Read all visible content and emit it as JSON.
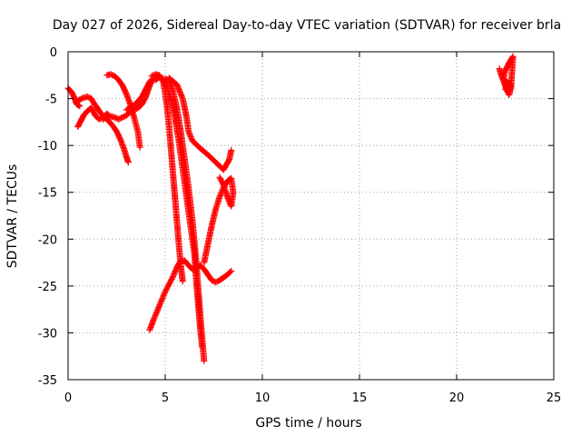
{
  "chart_data": {
    "type": "scatter",
    "title": "Day 027 of 2026, Sidereal Day-to-day VTEC variation (SDTVAR) for receiver brla",
    "xlabel": "GPS time / hours",
    "ylabel": "SDTVAR / TECUs",
    "xlim": [
      0,
      25
    ],
    "ylim": [
      -35,
      0
    ],
    "xticks": [
      0,
      5,
      10,
      15,
      20,
      25
    ],
    "yticks": [
      -35,
      -30,
      -25,
      -20,
      -15,
      -10,
      -5,
      0
    ],
    "grid": true,
    "legend": "none",
    "marker": "+",
    "color": "#ff0000",
    "series": [
      {
        "x": [
          0.0,
          0.15,
          0.3,
          0.45,
          0.6
        ],
        "y": [
          -3.9,
          -4.2,
          -4.8,
          -5.6,
          -5.8
        ]
      },
      {
        "x": [
          0.5,
          0.65,
          0.8,
          1.0,
          1.2,
          1.4,
          1.6,
          1.8,
          2.0,
          2.1
        ],
        "y": [
          -8.0,
          -7.4,
          -6.8,
          -6.3,
          -6.0,
          -6.8,
          -7.2,
          -7.0,
          -6.6,
          -6.8
        ]
      },
      {
        "x": [
          0.4,
          0.6,
          0.8,
          1.0,
          1.2,
          1.3,
          1.5,
          1.7,
          1.9,
          2.1,
          2.3,
          2.5,
          2.7,
          2.9,
          3.0,
          3.1
        ],
        "y": [
          -5.4,
          -5.1,
          -4.9,
          -4.8,
          -5.0,
          -5.4,
          -6.0,
          -6.6,
          -7.0,
          -7.4,
          -7.9,
          -8.5,
          -9.4,
          -10.5,
          -11.2,
          -11.8
        ]
      },
      {
        "x": [
          2.0,
          2.2,
          2.4,
          2.6,
          2.8,
          3.0,
          3.2,
          3.4,
          3.6,
          3.7
        ],
        "y": [
          -2.5,
          -2.4,
          -2.6,
          -3.0,
          -3.6,
          -4.5,
          -5.6,
          -7.0,
          -8.6,
          -10.2
        ]
      },
      {
        "x": [
          1.8,
          2.0,
          2.2,
          2.4,
          2.6,
          2.8,
          3.0,
          3.2,
          3.4,
          3.6,
          3.8,
          4.0,
          4.2,
          4.4,
          4.6
        ],
        "y": [
          -7.2,
          -7.0,
          -6.9,
          -7.0,
          -7.2,
          -7.0,
          -6.8,
          -6.4,
          -6.2,
          -6.0,
          -5.6,
          -4.8,
          -3.6,
          -2.8,
          -2.6
        ]
      },
      {
        "x": [
          3.0,
          3.2,
          3.4,
          3.6,
          3.8,
          4.0,
          4.2,
          4.4,
          4.6
        ],
        "y": [
          -6.2,
          -6.0,
          -5.7,
          -5.3,
          -4.8,
          -4.0,
          -3.2,
          -2.8,
          -2.6
        ]
      },
      {
        "x": [
          4.3,
          4.5,
          4.7,
          4.9,
          5.0,
          5.1,
          5.2,
          5.3,
          5.4,
          5.5,
          5.6,
          5.7,
          5.8,
          5.9
        ],
        "y": [
          -2.6,
          -2.4,
          -2.5,
          -3.2,
          -4.5,
          -6.0,
          -8.0,
          -10.5,
          -13.0,
          -15.5,
          -18.0,
          -20.5,
          -22.8,
          -24.5
        ]
      },
      {
        "x": [
          4.5,
          4.7,
          4.9,
          5.1,
          5.3,
          5.5,
          5.7,
          5.9,
          6.1,
          6.3,
          6.5,
          6.6,
          6.7,
          6.8,
          6.9
        ],
        "y": [
          -3.0,
          -2.7,
          -2.9,
          -3.8,
          -5.2,
          -7.0,
          -9.5,
          -12.5,
          -15.5,
          -18.5,
          -21.5,
          -24.5,
          -27.0,
          -29.5,
          -31.5
        ]
      },
      {
        "x": [
          5.0,
          5.2,
          5.4,
          5.6,
          5.8,
          6.0,
          6.2,
          6.4,
          6.6,
          6.8,
          7.0
        ],
        "y": [
          -2.9,
          -3.0,
          -4.2,
          -6.0,
          -8.5,
          -11.5,
          -14.5,
          -18.0,
          -22.5,
          -28.0,
          -33.0
        ]
      },
      {
        "x": [
          5.2,
          5.6,
          5.9,
          6.1,
          6.2,
          6.4,
          6.8,
          7.2,
          7.6,
          8.0,
          8.3,
          8.4
        ],
        "y": [
          -2.8,
          -3.5,
          -5.0,
          -7.0,
          -8.5,
          -9.5,
          -10.3,
          -11.0,
          -11.8,
          -12.6,
          -11.5,
          -10.5
        ]
      },
      {
        "x": [
          4.2,
          4.4,
          4.6,
          4.8,
          5.0,
          5.2,
          5.4,
          5.6,
          5.8,
          6.0,
          6.2,
          6.4,
          6.6,
          6.8,
          7.0,
          7.2,
          7.4,
          7.6,
          7.8,
          8.0,
          8.2,
          8.4
        ],
        "y": [
          -29.7,
          -28.6,
          -27.6,
          -26.6,
          -25.6,
          -24.8,
          -24.0,
          -23.0,
          -22.3,
          -22.3,
          -22.8,
          -23.2,
          -23.2,
          -22.8,
          -23.2,
          -23.8,
          -24.4,
          -24.6,
          -24.4,
          -24.1,
          -23.8,
          -23.4
        ]
      },
      {
        "x": [
          7.0,
          7.2,
          7.4,
          7.6,
          7.8,
          8.0,
          8.2,
          8.4,
          8.5,
          8.4,
          8.2,
          8.0,
          7.8
        ],
        "y": [
          -22.5,
          -20.5,
          -18.5,
          -16.8,
          -15.5,
          -14.5,
          -13.8,
          -13.5,
          -15.0,
          -16.5,
          -15.5,
          -14.2,
          -13.4
        ]
      },
      {
        "x": [
          22.2,
          22.3,
          22.4,
          22.5,
          22.6,
          22.7,
          22.8,
          22.9,
          22.7,
          22.5,
          22.4,
          22.6,
          22.8,
          22.7,
          22.5
        ],
        "y": [
          -1.8,
          -2.5,
          -3.0,
          -3.6,
          -4.2,
          -4.6,
          -3.8,
          -0.5,
          -1.2,
          -2.0,
          -3.0,
          -3.2,
          -3.5,
          -4.1,
          -4.0
        ]
      }
    ]
  }
}
